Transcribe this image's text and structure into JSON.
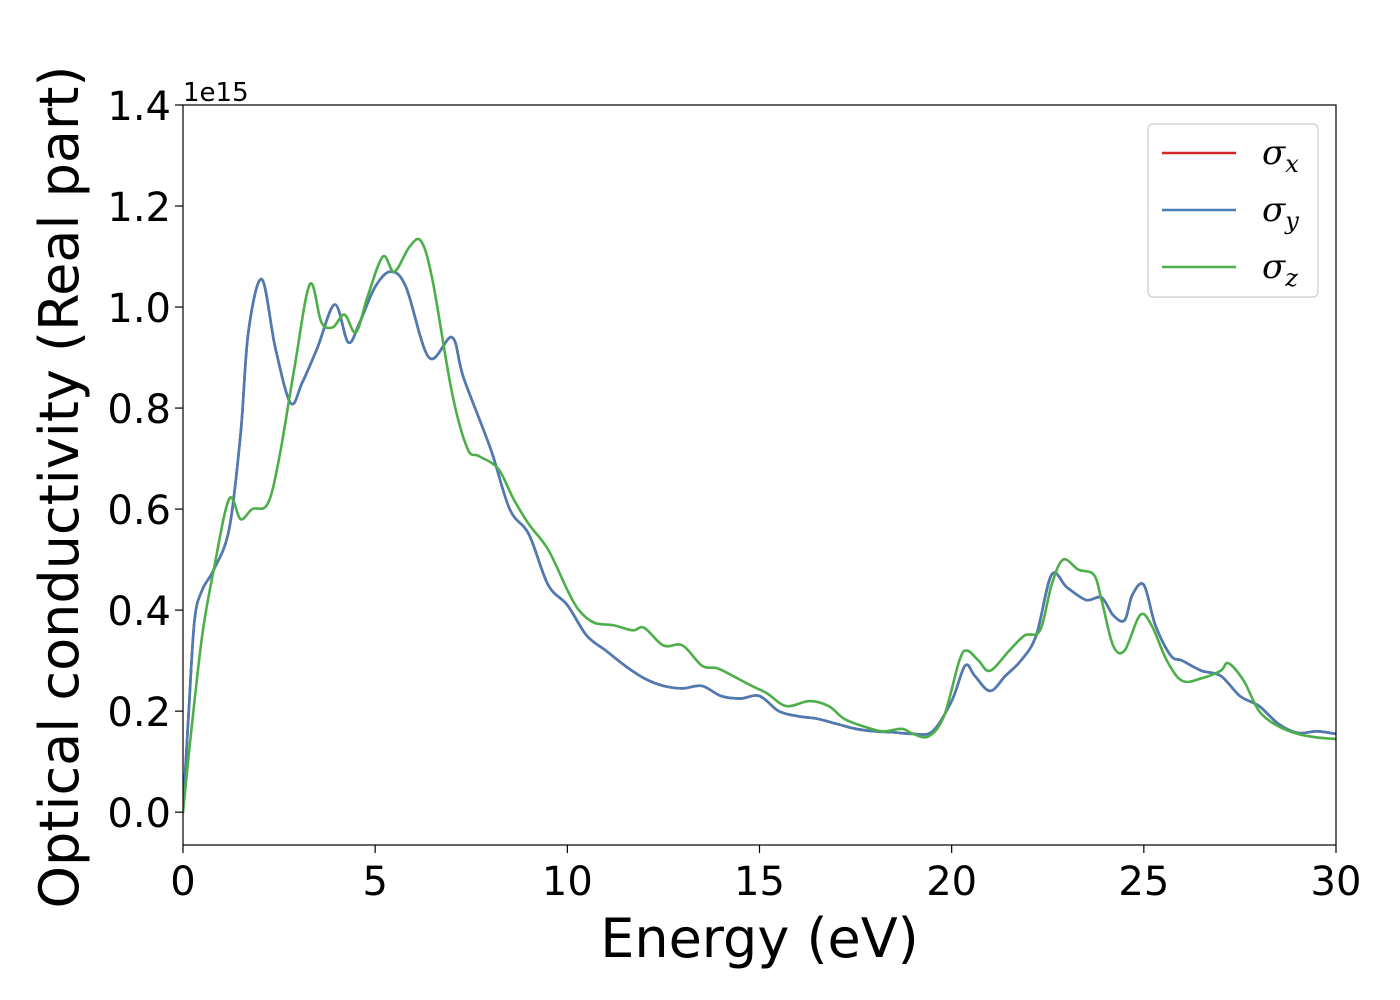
{
  "chart_data": {
    "type": "line",
    "xlabel": "Energy (eV)",
    "ylabel": "Optical conductivity (Real part)",
    "y_offset_label": "1e15",
    "xlim": [
      0,
      30
    ],
    "ylim": [
      -0.065,
      1.4
    ],
    "x_ticks": [
      0,
      5,
      10,
      15,
      20,
      25,
      30
    ],
    "x_tick_labels": [
      "0",
      "5",
      "10",
      "15",
      "20",
      "25",
      "30"
    ],
    "y_ticks": [
      0.0,
      0.2,
      0.4,
      0.6,
      0.8,
      1.0,
      1.2,
      1.4
    ],
    "y_tick_labels": [
      "0.0",
      "0.2",
      "0.4",
      "0.6",
      "0.8",
      "1.0",
      "1.2",
      "1.4"
    ],
    "grid": false,
    "legend_position": "top-right",
    "series": [
      {
        "name": "σ",
        "subscript": "x",
        "color": "#d62728",
        "points": [
          [
            0,
            0
          ],
          [
            0.15,
            0.2
          ],
          [
            0.3,
            0.38
          ],
          [
            0.5,
            0.44
          ],
          [
            0.8,
            0.48
          ],
          [
            1.2,
            0.56
          ],
          [
            1.5,
            0.75
          ],
          [
            1.7,
            0.95
          ],
          [
            2.05,
            1.055
          ],
          [
            2.4,
            0.92
          ],
          [
            2.8,
            0.81
          ],
          [
            3.1,
            0.85
          ],
          [
            3.5,
            0.92
          ],
          [
            3.95,
            1.005
          ],
          [
            4.3,
            0.93
          ],
          [
            4.6,
            0.97
          ],
          [
            5.0,
            1.04
          ],
          [
            5.4,
            1.07
          ],
          [
            5.8,
            1.04
          ],
          [
            6.4,
            0.9
          ],
          [
            7.0,
            0.94
          ],
          [
            7.3,
            0.86
          ],
          [
            8.0,
            0.72
          ],
          [
            8.5,
            0.6
          ],
          [
            9.0,
            0.55
          ],
          [
            9.5,
            0.45
          ],
          [
            10,
            0.41
          ],
          [
            10.5,
            0.35
          ],
          [
            11.0,
            0.32
          ],
          [
            11.5,
            0.29
          ],
          [
            12.0,
            0.265
          ],
          [
            12.5,
            0.25
          ],
          [
            13.0,
            0.245
          ],
          [
            13.5,
            0.25
          ],
          [
            14.0,
            0.23
          ],
          [
            14.5,
            0.225
          ],
          [
            15.0,
            0.23
          ],
          [
            15.5,
            0.2
          ],
          [
            16.0,
            0.19
          ],
          [
            16.5,
            0.185
          ],
          [
            17.0,
            0.175
          ],
          [
            17.5,
            0.165
          ],
          [
            18.0,
            0.16
          ],
          [
            18.5,
            0.158
          ],
          [
            19.0,
            0.155
          ],
          [
            19.5,
            0.16
          ],
          [
            20.0,
            0.22
          ],
          [
            20.35,
            0.29
          ],
          [
            20.6,
            0.27
          ],
          [
            21.0,
            0.24
          ],
          [
            21.4,
            0.27
          ],
          [
            21.8,
            0.3
          ],
          [
            22.2,
            0.35
          ],
          [
            22.6,
            0.47
          ],
          [
            23.0,
            0.445
          ],
          [
            23.5,
            0.42
          ],
          [
            23.9,
            0.425
          ],
          [
            24.2,
            0.39
          ],
          [
            24.5,
            0.38
          ],
          [
            24.7,
            0.43
          ],
          [
            25.0,
            0.45
          ],
          [
            25.3,
            0.37
          ],
          [
            25.7,
            0.31
          ],
          [
            26.0,
            0.3
          ],
          [
            26.5,
            0.28
          ],
          [
            27.0,
            0.27
          ],
          [
            27.5,
            0.23
          ],
          [
            28.0,
            0.21
          ],
          [
            28.5,
            0.175
          ],
          [
            29.0,
            0.157
          ],
          [
            29.5,
            0.16
          ],
          [
            30.0,
            0.155
          ]
        ]
      },
      {
        "name": "σ",
        "subscript": "y",
        "color": "#4a7cb5",
        "points": [
          [
            0,
            0
          ],
          [
            0.15,
            0.2
          ],
          [
            0.3,
            0.38
          ],
          [
            0.5,
            0.44
          ],
          [
            0.8,
            0.48
          ],
          [
            1.2,
            0.56
          ],
          [
            1.5,
            0.75
          ],
          [
            1.7,
            0.95
          ],
          [
            2.05,
            1.055
          ],
          [
            2.4,
            0.92
          ],
          [
            2.8,
            0.81
          ],
          [
            3.1,
            0.85
          ],
          [
            3.5,
            0.92
          ],
          [
            3.95,
            1.005
          ],
          [
            4.3,
            0.93
          ],
          [
            4.6,
            0.97
          ],
          [
            5.0,
            1.04
          ],
          [
            5.4,
            1.07
          ],
          [
            5.8,
            1.04
          ],
          [
            6.4,
            0.9
          ],
          [
            7.0,
            0.94
          ],
          [
            7.3,
            0.86
          ],
          [
            8.0,
            0.72
          ],
          [
            8.5,
            0.6
          ],
          [
            9.0,
            0.55
          ],
          [
            9.5,
            0.45
          ],
          [
            10,
            0.41
          ],
          [
            10.5,
            0.35
          ],
          [
            11.0,
            0.32
          ],
          [
            11.5,
            0.29
          ],
          [
            12.0,
            0.265
          ],
          [
            12.5,
            0.25
          ],
          [
            13.0,
            0.245
          ],
          [
            13.5,
            0.25
          ],
          [
            14.0,
            0.23
          ],
          [
            14.5,
            0.225
          ],
          [
            15.0,
            0.23
          ],
          [
            15.5,
            0.2
          ],
          [
            16.0,
            0.19
          ],
          [
            16.5,
            0.185
          ],
          [
            17.0,
            0.175
          ],
          [
            17.5,
            0.165
          ],
          [
            18.0,
            0.16
          ],
          [
            18.5,
            0.158
          ],
          [
            19.0,
            0.155
          ],
          [
            19.5,
            0.16
          ],
          [
            20.0,
            0.22
          ],
          [
            20.35,
            0.29
          ],
          [
            20.6,
            0.27
          ],
          [
            21.0,
            0.24
          ],
          [
            21.4,
            0.27
          ],
          [
            21.8,
            0.3
          ],
          [
            22.2,
            0.35
          ],
          [
            22.6,
            0.47
          ],
          [
            23.0,
            0.445
          ],
          [
            23.5,
            0.42
          ],
          [
            23.9,
            0.425
          ],
          [
            24.2,
            0.39
          ],
          [
            24.5,
            0.38
          ],
          [
            24.7,
            0.43
          ],
          [
            25.0,
            0.45
          ],
          [
            25.3,
            0.37
          ],
          [
            25.7,
            0.31
          ],
          [
            26.0,
            0.3
          ],
          [
            26.5,
            0.28
          ],
          [
            27.0,
            0.27
          ],
          [
            27.5,
            0.23
          ],
          [
            28.0,
            0.21
          ],
          [
            28.5,
            0.175
          ],
          [
            29.0,
            0.157
          ],
          [
            29.5,
            0.16
          ],
          [
            30.0,
            0.155
          ]
        ]
      },
      {
        "name": "σ",
        "subscript": "z",
        "color": "#4daf4a",
        "points": [
          [
            0,
            0
          ],
          [
            0.2,
            0.15
          ],
          [
            0.5,
            0.35
          ],
          [
            0.8,
            0.48
          ],
          [
            1.2,
            0.62
          ],
          [
            1.5,
            0.58
          ],
          [
            1.8,
            0.6
          ],
          [
            2.2,
            0.61
          ],
          [
            2.5,
            0.7
          ],
          [
            2.9,
            0.88
          ],
          [
            3.3,
            1.045
          ],
          [
            3.6,
            0.97
          ],
          [
            3.9,
            0.96
          ],
          [
            4.2,
            0.985
          ],
          [
            4.5,
            0.95
          ],
          [
            4.8,
            1.02
          ],
          [
            5.2,
            1.1
          ],
          [
            5.5,
            1.07
          ],
          [
            5.9,
            1.12
          ],
          [
            6.2,
            1.13
          ],
          [
            6.5,
            1.05
          ],
          [
            7.0,
            0.83
          ],
          [
            7.4,
            0.72
          ],
          [
            7.7,
            0.705
          ],
          [
            8.2,
            0.68
          ],
          [
            8.6,
            0.62
          ],
          [
            9.0,
            0.57
          ],
          [
            9.5,
            0.52
          ],
          [
            10.0,
            0.44
          ],
          [
            10.3,
            0.4
          ],
          [
            10.7,
            0.375
          ],
          [
            11.2,
            0.37
          ],
          [
            11.7,
            0.36
          ],
          [
            12.0,
            0.365
          ],
          [
            12.5,
            0.33
          ],
          [
            13.0,
            0.33
          ],
          [
            13.5,
            0.29
          ],
          [
            13.9,
            0.285
          ],
          [
            14.3,
            0.27
          ],
          [
            14.8,
            0.25
          ],
          [
            15.2,
            0.235
          ],
          [
            15.7,
            0.21
          ],
          [
            16.3,
            0.22
          ],
          [
            16.8,
            0.21
          ],
          [
            17.2,
            0.185
          ],
          [
            17.7,
            0.17
          ],
          [
            18.2,
            0.16
          ],
          [
            18.7,
            0.165
          ],
          [
            19.0,
            0.155
          ],
          [
            19.4,
            0.15
          ],
          [
            19.8,
            0.19
          ],
          [
            20.2,
            0.3
          ],
          [
            20.4,
            0.32
          ],
          [
            20.7,
            0.3
          ],
          [
            21.0,
            0.28
          ],
          [
            21.5,
            0.32
          ],
          [
            21.9,
            0.35
          ],
          [
            22.3,
            0.36
          ],
          [
            22.6,
            0.45
          ],
          [
            22.9,
            0.5
          ],
          [
            23.3,
            0.48
          ],
          [
            23.7,
            0.47
          ],
          [
            23.9,
            0.42
          ],
          [
            24.2,
            0.33
          ],
          [
            24.5,
            0.32
          ],
          [
            24.9,
            0.39
          ],
          [
            25.2,
            0.37
          ],
          [
            25.6,
            0.3
          ],
          [
            26.0,
            0.26
          ],
          [
            26.5,
            0.265
          ],
          [
            27.0,
            0.28
          ],
          [
            27.2,
            0.295
          ],
          [
            27.6,
            0.26
          ],
          [
            28.0,
            0.2
          ],
          [
            28.5,
            0.17
          ],
          [
            29.0,
            0.155
          ],
          [
            29.5,
            0.148
          ],
          [
            30.0,
            0.145
          ]
        ]
      }
    ]
  }
}
